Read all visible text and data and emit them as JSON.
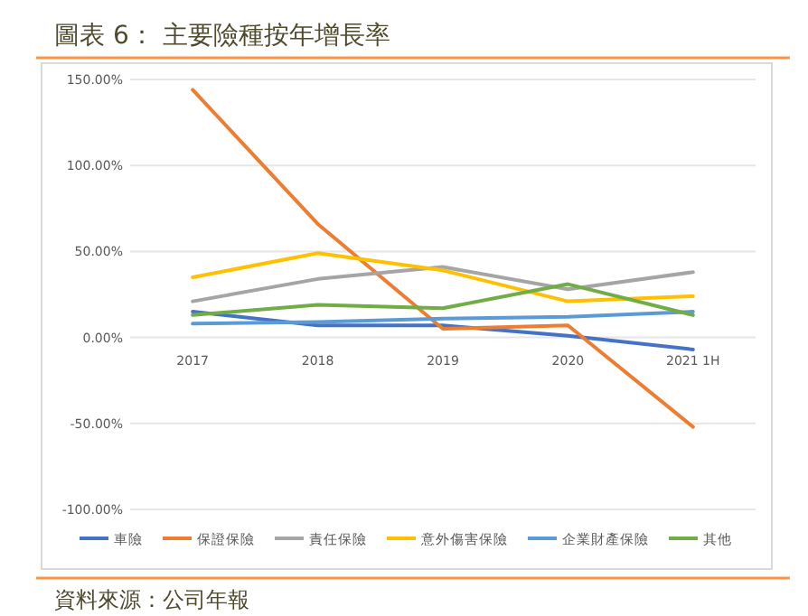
{
  "chart_data": {
    "type": "line",
    "title": "圖表 6： 主要險種按年增長率",
    "categories": [
      "2017",
      "2018",
      "2019",
      "2020",
      "2021 1H"
    ],
    "ylim": [
      -100,
      150
    ],
    "yticks": [
      {
        "value": -100,
        "label": "-100.00%"
      },
      {
        "value": -50,
        "label": "-50.00%"
      },
      {
        "value": 0,
        "label": "0.00%"
      },
      {
        "value": 50,
        "label": "50.00%"
      },
      {
        "value": 100,
        "label": "100.00%"
      },
      {
        "value": 150,
        "label": "150.00%"
      }
    ],
    "grid": "y",
    "legend": "bottom",
    "marker": "none",
    "line_style": "solid",
    "series": [
      {
        "name": "車險",
        "color": "#4472c4",
        "values": [
          15,
          7,
          7,
          1,
          -7
        ]
      },
      {
        "name": "保證保險",
        "color": "#ed7d31",
        "values": [
          144,
          66,
          5,
          7,
          -52
        ]
      },
      {
        "name": "責任保險",
        "color": "#a5a5a5",
        "values": [
          21,
          34,
          41,
          28,
          38
        ]
      },
      {
        "name": "意外傷害保險",
        "color": "#ffc000",
        "values": [
          35,
          49,
          39,
          21,
          24
        ]
      },
      {
        "name": "企業財產保險",
        "color": "#5b9bd5",
        "values": [
          8,
          9,
          11,
          12,
          15
        ]
      },
      {
        "name": "其他",
        "color": "#70ad47",
        "values": [
          13,
          19,
          17,
          31,
          13
        ]
      }
    ],
    "annotations": [
      "資料來源：公司年報"
    ]
  }
}
